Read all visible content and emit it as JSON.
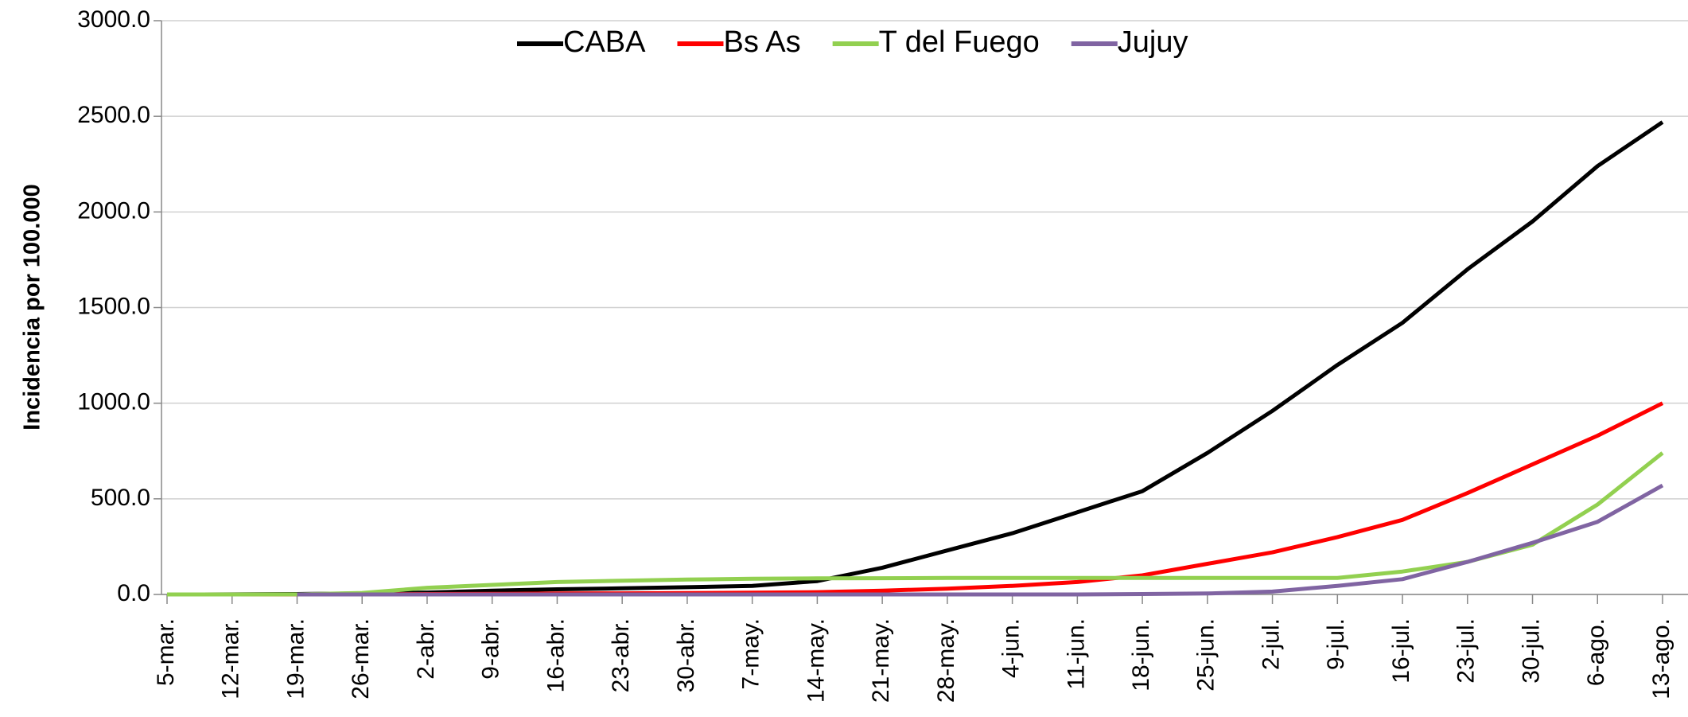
{
  "chart_data": {
    "type": "line",
    "y_label": "Incidencia por 100.000",
    "categories": [
      "5-mar.",
      "12-mar.",
      "19-mar.",
      "26-mar.",
      "2-abr.",
      "9-abr.",
      "16-abr.",
      "23-abr.",
      "30-abr.",
      "7-may.",
      "14-may.",
      "21-may.",
      "28-may.",
      "4-jun.",
      "11-jun.",
      "18-jun.",
      "25-jun.",
      "2-jul.",
      "9-jul.",
      "16-jul.",
      "23-jul.",
      "30-jul.",
      "6-ago.",
      "13-ago."
    ],
    "series": [
      {
        "name": "CABA",
        "color": "#000000",
        "values": [
          0.1,
          0.5,
          2,
          5,
          10,
          20,
          27,
          32,
          38,
          45,
          70,
          140,
          230,
          320,
          430,
          540,
          740,
          960,
          1200,
          1420,
          1700,
          1950,
          2240,
          2470
        ]
      },
      {
        "name": "Bs As",
        "color": "#ff0000",
        "values": [
          0,
          0,
          0.2,
          1,
          2,
          3,
          5,
          6,
          7,
          9,
          12,
          20,
          30,
          45,
          65,
          100,
          160,
          220,
          300,
          390,
          530,
          680,
          830,
          1000
        ]
      },
      {
        "name": "T del Fuego",
        "color": "#92d050",
        "values": [
          0,
          0,
          0.5,
          8,
          35,
          50,
          65,
          72,
          78,
          82,
          84,
          85,
          86,
          86,
          86,
          86,
          86,
          86,
          86,
          120,
          170,
          260,
          470,
          740
        ]
      },
      {
        "name": "Jujuy",
        "color": "#8064a2",
        "values": [
          null,
          null,
          0,
          0,
          0,
          0,
          0,
          0,
          0,
          0,
          0,
          0,
          0,
          0,
          0,
          2,
          5,
          15,
          45,
          80,
          170,
          270,
          380,
          570
        ]
      }
    ],
    "ylim": [
      0,
      3000
    ],
    "yticks": [
      {
        "value": 0,
        "label": "0.0"
      },
      {
        "value": 500,
        "label": "500.0"
      },
      {
        "value": 1000,
        "label": "1000.0"
      },
      {
        "value": 1500,
        "label": "1500.0"
      },
      {
        "value": 2000,
        "label": "2000.0"
      },
      {
        "value": 2500,
        "label": "2500.0"
      },
      {
        "value": 3000,
        "label": "3000.0"
      }
    ],
    "grid": true,
    "legend": "top"
  }
}
